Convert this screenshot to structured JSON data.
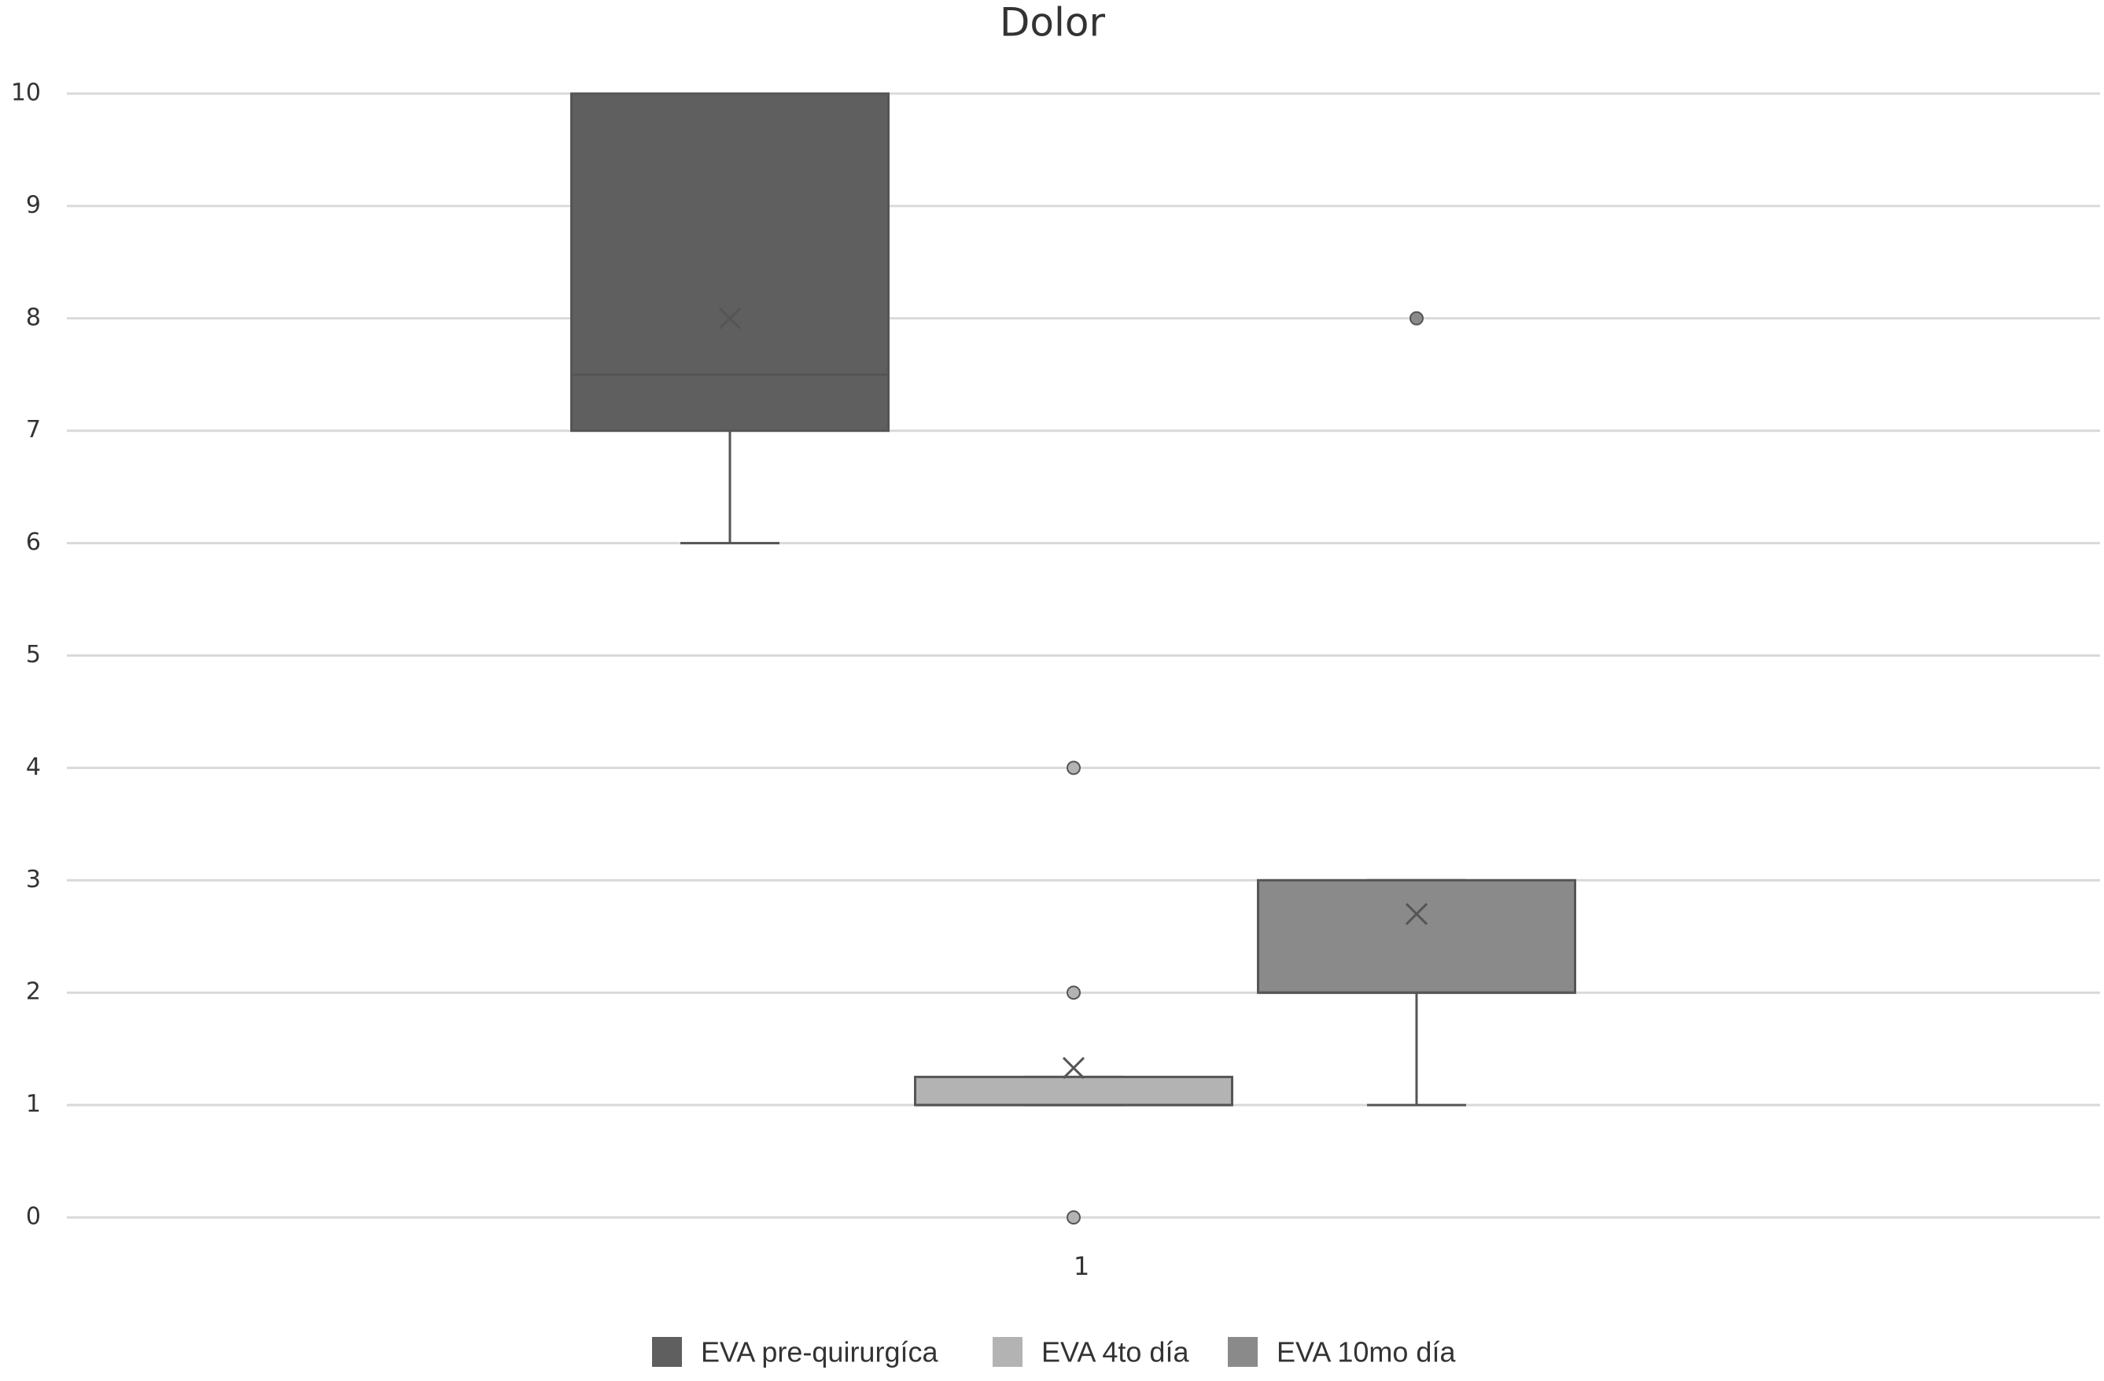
{
  "chart_data": {
    "type": "box",
    "title": "Dolor",
    "categories": [
      "1"
    ],
    "ylim": [
      0,
      10
    ],
    "yticks": [
      0,
      1,
      2,
      3,
      4,
      5,
      6,
      7,
      8,
      9,
      10
    ],
    "grid": true,
    "series": [
      {
        "name": "EVA pre-quirurgíca",
        "color": "#5f5f5f",
        "min": 6,
        "q1": 7,
        "median": 7.5,
        "q3": 10,
        "max": 10,
        "mean": 8,
        "outliers": []
      },
      {
        "name": "EVA 4to día",
        "color": "#b3b3b3",
        "min": 1,
        "q1": 1,
        "median": 1,
        "q3": 1.25,
        "max": 1.25,
        "mean": 1.33,
        "outliers": [
          4,
          2,
          0
        ]
      },
      {
        "name": "EVA 10mo día",
        "color": "#8a8a8a",
        "min": 1,
        "q1": 2,
        "median": 2,
        "q3": 3,
        "max": 3,
        "mean": 2.7,
        "outliers": [
          8
        ]
      }
    ]
  }
}
